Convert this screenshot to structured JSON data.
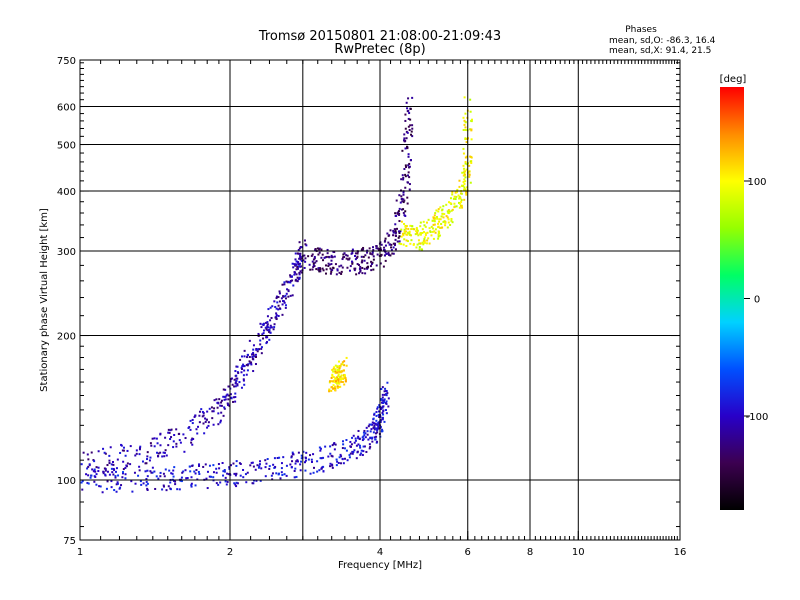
{
  "chart_data": {
    "type": "scatter",
    "title": "Tromsø 20150801 21:08:00-21:09:43",
    "subtitle": "RwPretec (8p)",
    "xlabel": "Frequency [MHz]",
    "ylabel": "Stationary phase Virtual Height [km]",
    "xscale": "log",
    "yscale": "log",
    "xlim": [
      1,
      16
    ],
    "ylim": [
      75,
      750
    ],
    "xticks": [
      1,
      2,
      4,
      6,
      8,
      10,
      16
    ],
    "yticks": [
      75,
      100,
      200,
      300,
      400,
      500,
      600,
      750
    ],
    "xgrid": [
      2,
      2.8,
      4,
      6,
      8,
      10
    ],
    "ygrid": [
      100,
      200,
      300,
      400,
      500,
      600
    ],
    "phase_stats": {
      "heading": "Phases",
      "o_line": "mean, sd,O: -86.3, 16.4",
      "x_line": "mean, sd,X:  91.4, 21.5"
    },
    "colorbar": {
      "unit": "[deg]",
      "range": [
        -180,
        180
      ],
      "ticks": [
        100,
        0,
        -100
      ],
      "colormap": [
        "#000000",
        "#3c0050",
        "#2800c8",
        "#0050ff",
        "#00d2ff",
        "#00ff64",
        "#96ff00",
        "#ffff00",
        "#ff8c00",
        "#ff0000"
      ]
    },
    "traces": [
      {
        "name": "O-mode F trace (lower)",
        "points": [
          [
            1.0,
            100
          ],
          [
            1.3,
            100.5
          ],
          [
            1.6,
            101.5
          ],
          [
            2.0,
            103
          ],
          [
            2.5,
            106
          ],
          [
            3.0,
            110
          ],
          [
            3.5,
            116
          ],
          [
            3.9,
            124
          ],
          [
            4.0,
            135
          ],
          [
            4.1,
            155
          ]
        ],
        "phase_deg": -95
      },
      {
        "name": "X-mode F trace (lower)",
        "points": [
          [
            1.0,
            108
          ],
          [
            1.3,
            113
          ],
          [
            1.6,
            122
          ],
          [
            1.9,
            140
          ],
          [
            2.1,
            165
          ],
          [
            2.3,
            195
          ],
          [
            2.5,
            230
          ],
          [
            2.7,
            270
          ],
          [
            2.8,
            300
          ]
        ],
        "phase_deg": -110
      },
      {
        "name": "O-mode F2 trace (upper)",
        "points": [
          [
            2.9,
            290
          ],
          [
            3.2,
            285
          ],
          [
            3.6,
            285
          ],
          [
            4.0,
            292
          ],
          [
            4.3,
            320
          ],
          [
            4.5,
            420
          ],
          [
            4.6,
            620
          ]
        ],
        "phase_deg": -130
      },
      {
        "name": "X-mode F2 trace",
        "points": [
          [
            4.4,
            330
          ],
          [
            4.8,
            320
          ],
          [
            5.2,
            340
          ],
          [
            5.6,
            370
          ],
          [
            6.0,
            420
          ],
          [
            6.0,
            600
          ]
        ],
        "phase_deg": 95
      },
      {
        "name": "oblique echoes",
        "points": [
          [
            3.2,
            160
          ],
          [
            3.3,
            165
          ],
          [
            3.4,
            170
          ]
        ],
        "phase_deg": 110
      }
    ]
  }
}
